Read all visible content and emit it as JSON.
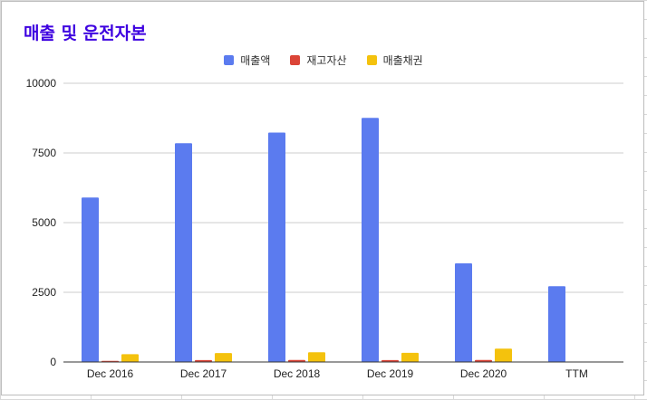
{
  "chart_data": {
    "type": "bar",
    "title": "매출 및 운전자본",
    "categories": [
      "Dec 2016",
      "Dec 2017",
      "Dec 2018",
      "Dec 2019",
      "Dec 2020",
      "TTM"
    ],
    "series": [
      {
        "name": "매출액",
        "color": "#5b7bef",
        "values": [
          5900,
          7850,
          8230,
          8760,
          3540,
          2720
        ]
      },
      {
        "name": "재고자산",
        "color": "#db4437",
        "values": [
          40,
          70,
          75,
          70,
          75,
          null
        ]
      },
      {
        "name": "매출채권",
        "color": "#f4c20d",
        "values": [
          280,
          320,
          350,
          330,
          480,
          null
        ]
      }
    ],
    "ylim": [
      0,
      10000
    ],
    "yticks": [
      0,
      2500,
      5000,
      7500,
      10000
    ],
    "grid": true,
    "legend": "top-center"
  }
}
